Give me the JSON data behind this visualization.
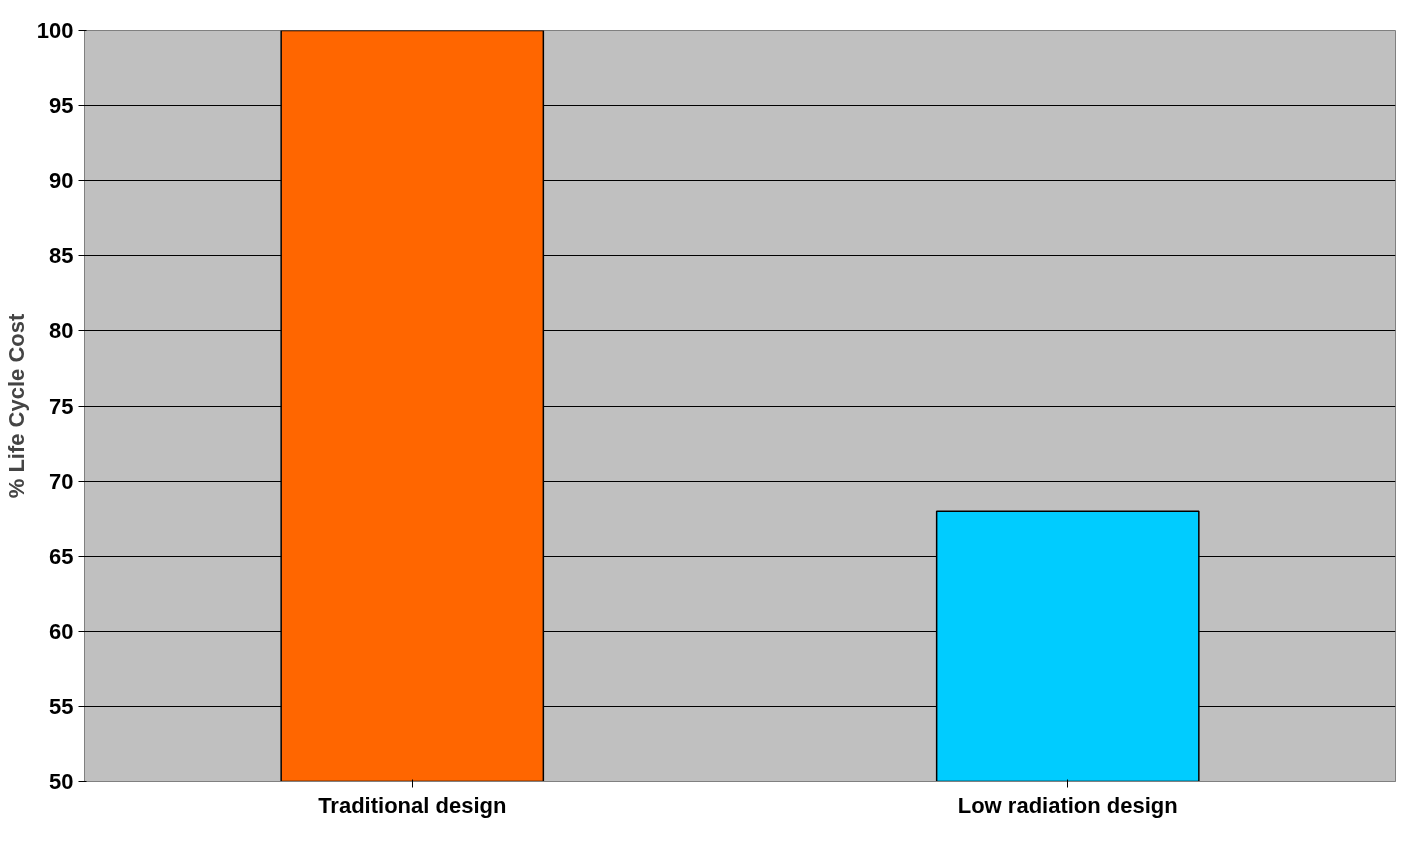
{
  "chart_data": {
    "type": "bar",
    "ylabel": "% Life Cycle Cost",
    "categories": [
      "Traditional design",
      "Low radiation design"
    ],
    "values": [
      100,
      68
    ],
    "colors": [
      "#ff6600",
      "#00ccff"
    ],
    "ylim": [
      50,
      100
    ],
    "yticks": [
      50,
      55,
      60,
      65,
      70,
      75,
      80,
      85,
      90,
      95,
      100
    ],
    "grid": "y"
  }
}
